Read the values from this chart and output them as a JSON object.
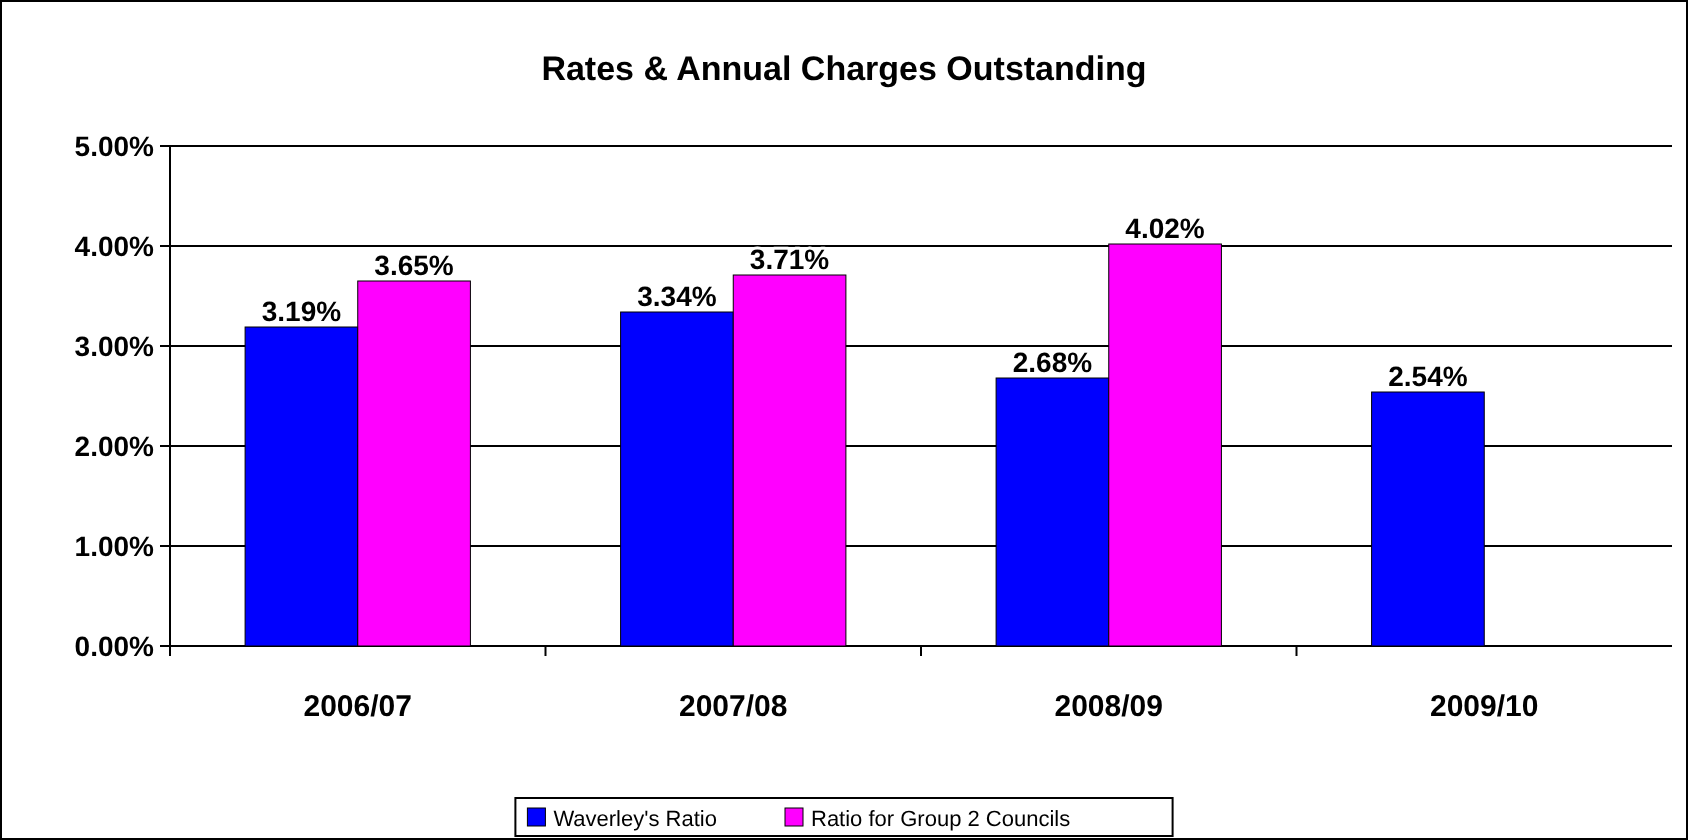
{
  "chart_data": {
    "type": "bar",
    "title": "Rates & Annual Charges Outstanding",
    "categories": [
      "2006/07",
      "2007/08",
      "2008/09",
      "2009/10"
    ],
    "series": [
      {
        "name": "Waverley's Ratio",
        "color": "#0000ff",
        "values": [
          3.19,
          3.34,
          2.68,
          2.54
        ],
        "value_labels": [
          "3.19%",
          "3.34%",
          "2.68%",
          "2.54%"
        ]
      },
      {
        "name": "Ratio for Group 2 Councils",
        "color": "#ff00ff",
        "values": [
          3.65,
          3.71,
          4.02,
          null
        ],
        "value_labels": [
          "3.65%",
          "3.71%",
          "4.02%",
          null
        ]
      }
    ],
    "ylim": [
      0,
      5
    ],
    "yticks": [
      {
        "value": 0,
        "label": "0.00%"
      },
      {
        "value": 1,
        "label": "1.00%"
      },
      {
        "value": 2,
        "label": "2.00%"
      },
      {
        "value": 3,
        "label": "3.00%"
      },
      {
        "value": 4,
        "label": "4.00%"
      },
      {
        "value": 5,
        "label": "5.00%"
      }
    ],
    "grid": "y",
    "legend": "bottom"
  }
}
